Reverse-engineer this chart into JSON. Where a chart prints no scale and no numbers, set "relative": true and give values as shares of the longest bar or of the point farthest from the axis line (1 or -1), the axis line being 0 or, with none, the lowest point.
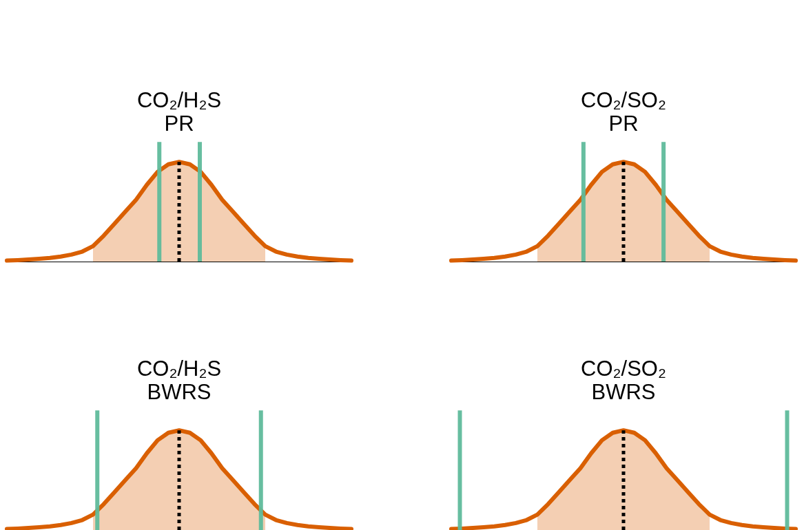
{
  "chart_data": [
    {
      "type": "line",
      "title": "CO₂/H₂S\nPR",
      "relative": true,
      "tick_labels": false,
      "marker": "none",
      "categories": [
        null,
        null,
        null,
        null,
        null,
        null,
        null,
        null,
        null,
        null,
        null,
        null,
        null,
        null,
        null,
        null,
        null,
        null,
        null,
        null,
        null,
        null,
        null,
        null,
        null,
        null,
        null,
        null,
        null,
        null,
        null,
        null,
        null
      ],
      "series": [
        {
          "type": "area",
          "color": "#f4cfb3",
          "values": [
            null,
            null,
            null,
            null,
            null,
            null,
            null,
            null,
            0.155,
            0.26,
            0.38,
            0.5,
            0.62,
            0.77,
            0.9,
            0.975,
            1,
            0.975,
            0.9,
            0.77,
            0.62,
            0.5,
            0.38,
            0.26,
            0.155,
            null,
            null,
            null,
            null,
            null,
            null,
            null,
            null
          ]
        },
        {
          "type": "line",
          "color": "#d95f02",
          "values": [
            0.01,
            0.014,
            0.02,
            0.027,
            0.036,
            0.05,
            0.07,
            0.1,
            0.155,
            0.26,
            0.38,
            0.5,
            0.62,
            0.77,
            0.9,
            0.975,
            1,
            0.975,
            0.9,
            0.77,
            0.62,
            0.5,
            0.38,
            0.26,
            0.155,
            0.1,
            0.07,
            0.05,
            0.036,
            0.027,
            0.02,
            0.014,
            0.01
          ]
        }
      ]
    },
    {
      "type": "line",
      "title": "CO₂/SO₂\nPR",
      "relative": true,
      "tick_labels": false,
      "marker": "none",
      "categories": [
        null,
        null,
        null,
        null,
        null,
        null,
        null,
        null,
        null,
        null,
        null,
        null,
        null,
        null,
        null,
        null,
        null,
        null,
        null,
        null,
        null,
        null,
        null,
        null,
        null,
        null,
        null,
        null,
        null,
        null,
        null,
        null,
        null
      ],
      "series": [
        {
          "type": "area",
          "color": "#f4cfb3",
          "values": [
            null,
            null,
            null,
            null,
            null,
            null,
            null,
            null,
            0.155,
            0.26,
            0.38,
            0.5,
            0.62,
            0.77,
            0.9,
            0.975,
            1,
            0.975,
            0.9,
            0.77,
            0.62,
            0.5,
            0.38,
            0.26,
            0.155,
            null,
            null,
            null,
            null,
            null,
            null,
            null,
            null
          ]
        },
        {
          "type": "line",
          "color": "#d95f02",
          "values": [
            0.01,
            0.014,
            0.02,
            0.027,
            0.036,
            0.05,
            0.07,
            0.1,
            0.155,
            0.26,
            0.38,
            0.5,
            0.62,
            0.77,
            0.9,
            0.975,
            1,
            0.975,
            0.9,
            0.77,
            0.62,
            0.5,
            0.38,
            0.26,
            0.155,
            0.1,
            0.07,
            0.05,
            0.036,
            0.027,
            0.02,
            0.014,
            0.01
          ]
        }
      ]
    },
    {
      "type": "line",
      "title": "CO₂/H₂S\nBWRS",
      "relative": true,
      "tick_labels": false,
      "marker": "none",
      "categories": [
        null,
        null,
        null,
        null,
        null,
        null,
        null,
        null,
        null,
        null,
        null,
        null,
        null,
        null,
        null,
        null,
        null,
        null,
        null,
        null,
        null,
        null,
        null,
        null,
        null,
        null,
        null,
        null,
        null,
        null,
        null,
        null,
        null
      ],
      "series": [
        {
          "type": "area",
          "color": "#f4cfb3",
          "values": [
            null,
            null,
            null,
            null,
            null,
            null,
            null,
            null,
            0.155,
            0.26,
            0.38,
            0.5,
            0.62,
            0.77,
            0.9,
            0.975,
            1,
            0.975,
            0.9,
            0.77,
            0.62,
            0.5,
            0.38,
            0.26,
            0.155,
            null,
            null,
            null,
            null,
            null,
            null,
            null,
            null
          ]
        },
        {
          "type": "line",
          "color": "#d95f02",
          "values": [
            0.01,
            0.014,
            0.02,
            0.027,
            0.036,
            0.05,
            0.07,
            0.1,
            0.155,
            0.26,
            0.38,
            0.5,
            0.62,
            0.77,
            0.9,
            0.975,
            1,
            0.975,
            0.9,
            0.77,
            0.62,
            0.5,
            0.38,
            0.26,
            0.155,
            0.1,
            0.07,
            0.05,
            0.036,
            0.027,
            0.02,
            0.014,
            0.01
          ]
        }
      ]
    },
    {
      "type": "line",
      "title": "CO₂/SO₂\nBWRS",
      "relative": true,
      "tick_labels": false,
      "marker": "none",
      "categories": [
        null,
        null,
        null,
        null,
        null,
        null,
        null,
        null,
        null,
        null,
        null,
        null,
        null,
        null,
        null,
        null,
        null,
        null,
        null,
        null,
        null,
        null,
        null,
        null,
        null,
        null,
        null,
        null,
        null,
        null,
        null,
        null,
        null
      ],
      "series": [
        {
          "type": "area",
          "color": "#f4cfb3",
          "values": [
            null,
            null,
            null,
            null,
            null,
            null,
            null,
            null,
            0.155,
            0.26,
            0.38,
            0.5,
            0.62,
            0.77,
            0.9,
            0.975,
            1,
            0.975,
            0.9,
            0.77,
            0.62,
            0.5,
            0.38,
            0.26,
            0.155,
            null,
            null,
            null,
            null,
            null,
            null,
            null,
            null
          ]
        },
        {
          "type": "line",
          "color": "#d95f02",
          "values": [
            0.01,
            0.014,
            0.02,
            0.027,
            0.036,
            0.05,
            0.07,
            0.1,
            0.155,
            0.26,
            0.38,
            0.5,
            0.62,
            0.77,
            0.9,
            0.975,
            1,
            0.975,
            0.9,
            0.77,
            0.62,
            0.5,
            0.38,
            0.26,
            0.155,
            0.1,
            0.07,
            0.05,
            0.036,
            0.027,
            0.02,
            0.014,
            0.01
          ]
        }
      ]
    }
  ]
}
